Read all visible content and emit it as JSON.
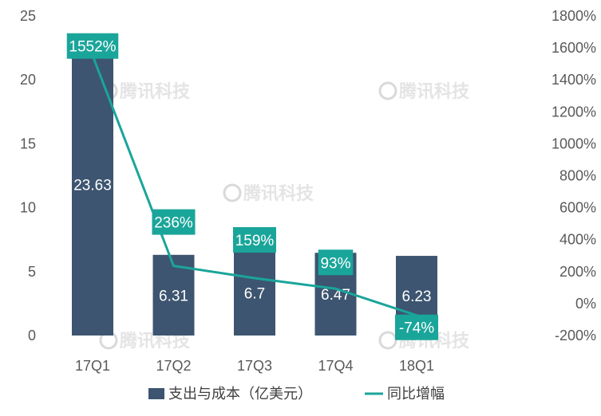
{
  "chart_data": {
    "type": "bar",
    "categories": [
      "17Q1",
      "17Q2",
      "17Q3",
      "17Q4",
      "18Q1"
    ],
    "series": [
      {
        "name": "支出与成本（亿美元）",
        "type": "bar",
        "axis": "left",
        "values": [
          23.63,
          6.31,
          6.7,
          6.47,
          6.23
        ],
        "labels": [
          "23.63",
          "6.31",
          "6.7",
          "6.47",
          "6.23"
        ],
        "color": "#3d5570"
      },
      {
        "name": "同比增幅",
        "type": "line",
        "axis": "right",
        "values": [
          1552,
          236,
          159,
          93,
          -74
        ],
        "labels": [
          "1552%",
          "236%",
          "159%",
          "93%",
          "-74%"
        ],
        "color": "#1aa59a"
      }
    ],
    "y_left": {
      "min": 0,
      "max": 25,
      "ticks": [
        0,
        5,
        10,
        15,
        20,
        25
      ],
      "tick_labels": [
        "0",
        "5",
        "10",
        "15",
        "20",
        "25"
      ]
    },
    "y_right": {
      "min": -200,
      "max": 1800,
      "ticks": [
        -200,
        0,
        200,
        400,
        600,
        800,
        1000,
        1200,
        1400,
        1600,
        1800
      ],
      "tick_labels": [
        "-200%",
        "0%",
        "200%",
        "400%",
        "600%",
        "800%",
        "1000%",
        "1200%",
        "1400%",
        "1600%",
        "1800%"
      ]
    },
    "grid": false,
    "legend_position": "bottom"
  },
  "watermark": {
    "text": "腾讯科技"
  }
}
